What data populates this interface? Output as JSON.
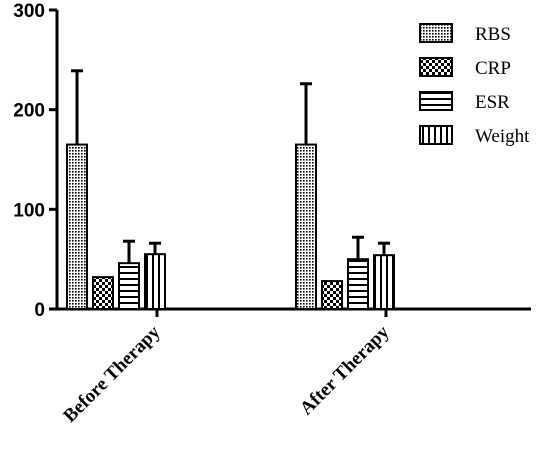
{
  "chart_data": {
    "type": "bar",
    "title": "",
    "xlabel": "",
    "ylabel": "",
    "ylim": [
      0,
      300
    ],
    "yticks": [
      0,
      100,
      200,
      300
    ],
    "categories": [
      "Before Therapy",
      "After Therapy"
    ],
    "series": [
      {
        "name": "RBS",
        "values": [
          165,
          165
        ],
        "errors": [
          74,
          61
        ],
        "pattern": "dense-dots"
      },
      {
        "name": "CRP",
        "values": [
          32,
          28
        ],
        "errors": [
          0,
          0
        ],
        "pattern": "checker"
      },
      {
        "name": "ESR",
        "values": [
          46,
          50
        ],
        "errors": [
          22,
          22
        ],
        "pattern": "horizontal-lines"
      },
      {
        "name": "Weight",
        "values": [
          55,
          54
        ],
        "errors": [
          11,
          12
        ],
        "pattern": "vertical-lines"
      }
    ],
    "legend_position": "top-right",
    "grid": false
  }
}
